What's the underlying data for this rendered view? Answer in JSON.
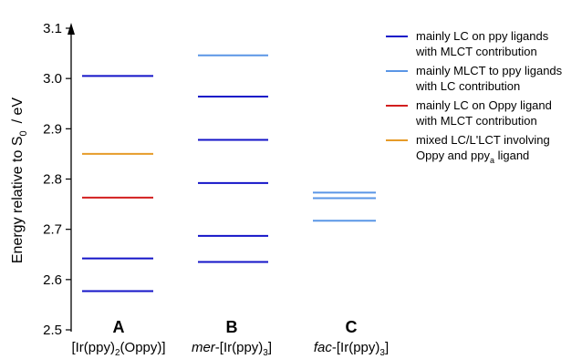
{
  "chart_data": {
    "type": "energy-level diagram",
    "ylabel": "Energy relative to S",
    "ylabel_sub": "0",
    "ylabel_unit": "/ eV",
    "ylim": [
      2.5,
      3.1
    ],
    "yticks": [
      "2.5",
      "2.6",
      "2.7",
      "2.8",
      "2.9",
      "3.0",
      "3.1"
    ],
    "colors": {
      "dark_blue": "#1414c8",
      "light_blue": "#5a96e6",
      "red": "#d21e1e",
      "orange": "#e69b28"
    },
    "legend": [
      {
        "color_key": "dark_blue",
        "lines": [
          {
            "t": "mainly LC on ppy ligands"
          },
          {
            "t": "with MLCT contribution"
          }
        ]
      },
      {
        "color_key": "light_blue",
        "lines": [
          {
            "t": "mainly MLCT to ppy ligands"
          },
          {
            "t": "with LC contribution"
          }
        ]
      },
      {
        "color_key": "red",
        "lines": [
          {
            "t": "mainly LC on Oppy ligand"
          },
          {
            "t": "with MLCT contribution"
          }
        ]
      },
      {
        "color_key": "orange",
        "lines": [
          {
            "t": "mixed LC/L'LCT involving"
          },
          {
            "t": "Oppy and ppy",
            "sub": "a",
            "after": " ligand"
          }
        ]
      }
    ],
    "groups": [
      {
        "letter": "A",
        "name_parts": [
          {
            "t": "[Ir(ppy)"
          },
          {
            "t": "2",
            "sub": true
          },
          {
            "t": "(Oppy)]"
          }
        ],
        "levels": [
          {
            "value": 3.005,
            "color_key": "dark_blue"
          },
          {
            "value": 2.85,
            "color_key": "orange"
          },
          {
            "value": 2.763,
            "color_key": "red"
          },
          {
            "value": 2.642,
            "color_key": "dark_blue"
          },
          {
            "value": 2.577,
            "color_key": "dark_blue"
          }
        ]
      },
      {
        "letter": "B",
        "name_parts": [
          {
            "t": "mer",
            "italic": true
          },
          {
            "t": "-[Ir(ppy)"
          },
          {
            "t": "3",
            "sub": true
          },
          {
            "t": "]"
          }
        ],
        "levels": [
          {
            "value": 3.046,
            "color_key": "light_blue"
          },
          {
            "value": 2.964,
            "color_key": "dark_blue"
          },
          {
            "value": 2.878,
            "color_key": "dark_blue"
          },
          {
            "value": 2.792,
            "color_key": "dark_blue"
          },
          {
            "value": 2.687,
            "color_key": "dark_blue"
          },
          {
            "value": 2.635,
            "color_key": "dark_blue"
          }
        ]
      },
      {
        "letter": "C",
        "name_parts": [
          {
            "t": "fac",
            "italic": true
          },
          {
            "t": "-[Ir(ppy)"
          },
          {
            "t": "3",
            "sub": true
          },
          {
            "t": "]"
          }
        ],
        "levels": [
          {
            "value": 2.773,
            "color_key": "light_blue"
          },
          {
            "value": 2.762,
            "color_key": "light_blue"
          },
          {
            "value": 2.717,
            "color_key": "light_blue"
          }
        ]
      }
    ]
  }
}
